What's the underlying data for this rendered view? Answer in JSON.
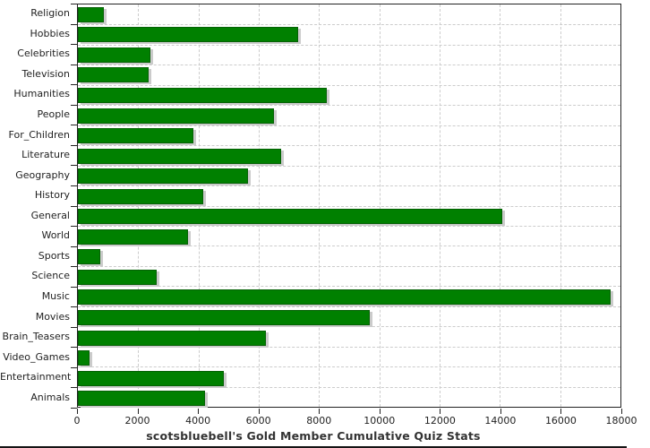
{
  "chart_data": {
    "type": "bar",
    "orientation": "horizontal",
    "title": "scotsbluebell's Gold Member Cumulative Quiz Stats",
    "categories": [
      "Religion",
      "Hobbies",
      "Celebrities",
      "Television",
      "Humanities",
      "People",
      "For_Children",
      "Literature",
      "Geography",
      "History",
      "General",
      "World",
      "Sports",
      "Science",
      "Music",
      "Movies",
      "Brain_Teasers",
      "Video_Games",
      "Entertainment",
      "Animals"
    ],
    "values": [
      860,
      7320,
      2420,
      2340,
      8260,
      6510,
      3820,
      6740,
      5640,
      4160,
      14070,
      3640,
      740,
      2610,
      17680,
      9680,
      6250,
      380,
      4830,
      4210
    ],
    "xlabel": "",
    "ylabel": "",
    "xlim": [
      0,
      18000
    ],
    "x_ticks": [
      0,
      2000,
      4000,
      6000,
      8000,
      10000,
      12000,
      14000,
      16000,
      18000
    ],
    "grid": "dashed",
    "legend": "none",
    "bar_color": "#008000",
    "bar_border_color": "#056105",
    "shadow_color": "#cbcbcb",
    "gridline_color": "#cccccc",
    "axis_color": "#222222",
    "text_color": "#222222",
    "title_color": "#333333"
  }
}
